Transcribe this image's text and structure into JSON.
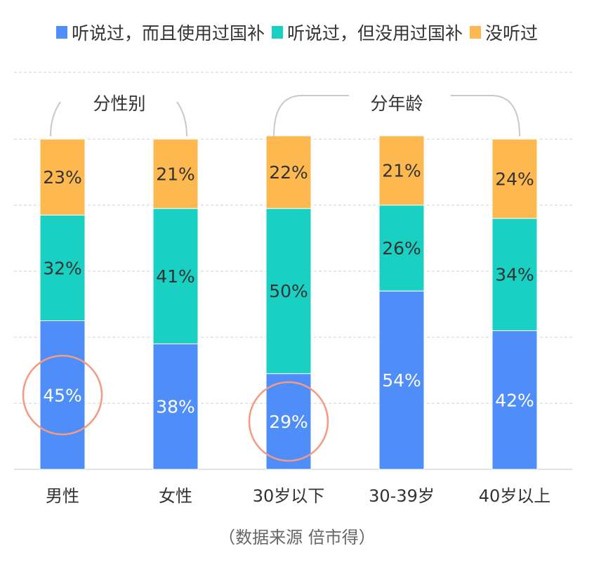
{
  "chart_data": {
    "type": "bar",
    "stacked": true,
    "unit": "%",
    "categories": [
      "男性",
      "女性",
      "30岁以下",
      "30-39岁",
      "40岁以上"
    ],
    "series": [
      {
        "name": "听说过，而且使用过国补",
        "color": "#4f8ef9",
        "values": [
          45,
          38,
          29,
          54,
          42
        ]
      },
      {
        "name": "听说过，但没用过国补",
        "color": "#1ad0c2",
        "values": [
          32,
          41,
          50,
          26,
          34
        ]
      },
      {
        "name": "没听过",
        "color": "#fdb94f",
        "values": [
          23,
          21,
          22,
          21,
          24
        ]
      }
    ],
    "ylim": [
      0,
      100
    ],
    "grid": true,
    "legend_position": "top",
    "group_labels": [
      {
        "label": "分性别",
        "categories": [
          "男性",
          "女性"
        ]
      },
      {
        "label": "分年龄",
        "categories": [
          "30岁以下",
          "30-39岁",
          "40岁以上"
        ]
      }
    ],
    "highlights": [
      {
        "category": "男性",
        "series": "听说过，而且使用过国补"
      },
      {
        "category": "30岁以下",
        "series": "听说过，而且使用过国补"
      }
    ],
    "highlight_color": "#f59a82"
  },
  "source": "（数据来源  倍市得）"
}
